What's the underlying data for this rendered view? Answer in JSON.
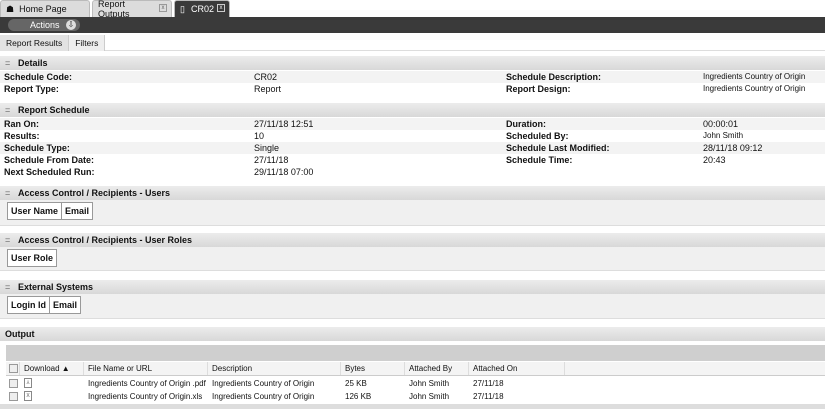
{
  "tabs": [
    {
      "label": "Home Page",
      "icon": "home-icon"
    },
    {
      "label": "Report Outputs"
    },
    {
      "label": "CR02",
      "icon": "document-icon",
      "active": true
    }
  ],
  "toolbar": {
    "actions_label": "Actions"
  },
  "subtabs": [
    "Report Results",
    "Filters"
  ],
  "details": {
    "title": "Details",
    "schedule_code_label": "Schedule Code:",
    "schedule_code": "CR02",
    "report_type_label": "Report Type:",
    "report_type": "Report",
    "schedule_description_label": "Schedule Description:",
    "schedule_description": "Ingredients Country of Origin",
    "report_design_label": "Report Design:",
    "report_design": "Ingredients Country of Origin"
  },
  "schedule": {
    "title": "Report Schedule",
    "ran_on_label": "Ran On:",
    "ran_on": "27/11/18 12:51",
    "results_label": "Results:",
    "results": "10",
    "schedule_type_label": "Schedule Type:",
    "schedule_type": "Single",
    "schedule_from_label": "Schedule From Date:",
    "schedule_from": "27/11/18",
    "next_run_label": "Next Scheduled Run:",
    "next_run": "29/11/18 07:00",
    "duration_label": "Duration:",
    "duration": "00:00:01",
    "scheduled_by_label": "Scheduled By:",
    "scheduled_by": "John Smith",
    "last_modified_label": "Schedule Last Modified:",
    "last_modified": "28/11/18 09:12",
    "schedule_time_label": "Schedule Time:",
    "schedule_time": "20:43"
  },
  "users": {
    "title": "Access Control / Recipients - Users",
    "columns": [
      "User Name",
      "Email"
    ]
  },
  "roles": {
    "title": "Access Control / Recipients - User Roles",
    "columns": [
      "User Role"
    ]
  },
  "external": {
    "title": "External Systems",
    "columns": [
      "Login Id",
      "Email"
    ]
  },
  "output": {
    "title": "Output",
    "columns": [
      "Download ▲",
      "File Name or URL",
      "Description",
      "Bytes",
      "Attached By",
      "Attached On"
    ],
    "rows": [
      {
        "icon": "pdf-icon",
        "file": "Ingredients Country of Origin .pdf",
        "description": "Ingredients Country of Origin",
        "bytes": "25 KB",
        "by": "John Smith",
        "on": "27/11/18"
      },
      {
        "icon": "xls-icon",
        "file": "Ingredients Country of Origin.xls",
        "description": "Ingredients Country of Origin",
        "bytes": "126 KB",
        "by": "John Smith",
        "on": "27/11/18"
      }
    ]
  }
}
